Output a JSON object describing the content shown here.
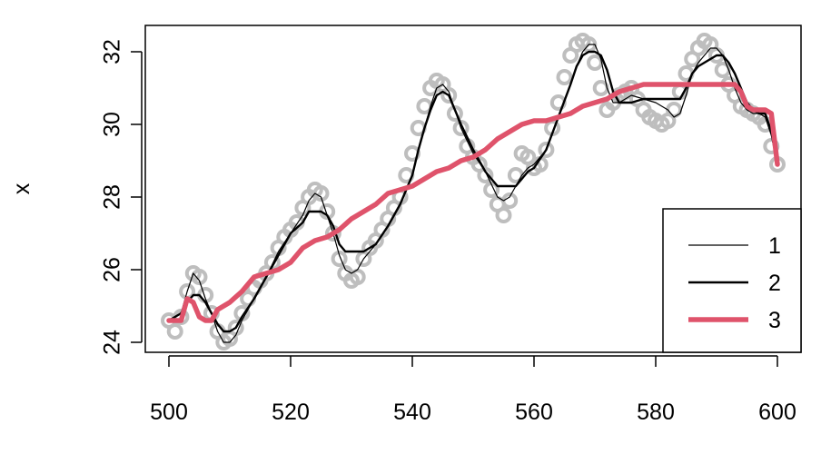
{
  "chart_data": {
    "type": "line",
    "title": "",
    "xlabel": "",
    "ylabel": "x",
    "xlim": [
      500,
      600
    ],
    "ylim": [
      24,
      32.5
    ],
    "x_ticks": [
      500,
      520,
      540,
      560,
      580,
      600
    ],
    "y_ticks": [
      24,
      26,
      28,
      30,
      32
    ],
    "x_tick_labels": [
      "500",
      "520",
      "540",
      "560",
      "580",
      "600"
    ],
    "y_tick_labels": [
      "24",
      "26",
      "28",
      "30",
      "32"
    ],
    "grid": false,
    "legend_position": "bottom-right",
    "points": {
      "color": "#bebebe",
      "x": [
        500,
        501,
        502,
        503,
        504,
        505,
        506,
        507,
        508,
        509,
        510,
        511,
        512,
        513,
        514,
        515,
        516,
        517,
        518,
        519,
        520,
        521,
        522,
        523,
        524,
        525,
        526,
        527,
        528,
        529,
        530,
        531,
        532,
        533,
        534,
        535,
        536,
        537,
        538,
        539,
        540,
        541,
        542,
        543,
        544,
        545,
        546,
        547,
        548,
        549,
        550,
        551,
        552,
        553,
        554,
        555,
        556,
        557,
        558,
        559,
        560,
        561,
        562,
        563,
        564,
        565,
        566,
        567,
        568,
        569,
        570,
        571,
        572,
        573,
        574,
        575,
        576,
        577,
        578,
        579,
        580,
        581,
        582,
        583,
        584,
        585,
        586,
        587,
        588,
        589,
        590,
        591,
        592,
        593,
        594,
        595,
        596,
        597,
        598,
        599,
        600
      ],
      "y": [
        24.6,
        24.3,
        24.7,
        25.4,
        25.9,
        25.8,
        25.3,
        24.8,
        24.3,
        24.0,
        24.1,
        24.4,
        24.8,
        25.2,
        25.5,
        25.7,
        25.9,
        26.2,
        26.6,
        26.9,
        27.1,
        27.3,
        27.7,
        28.0,
        28.2,
        28.1,
        27.6,
        27.0,
        26.3,
        25.9,
        25.7,
        25.8,
        26.3,
        26.6,
        26.8,
        27.1,
        27.4,
        27.7,
        28.0,
        28.6,
        29.2,
        29.9,
        30.5,
        31.0,
        31.2,
        31.1,
        30.8,
        30.3,
        29.9,
        29.4,
        29.1,
        28.9,
        28.6,
        28.2,
        27.8,
        27.5,
        27.9,
        28.6,
        29.2,
        29.1,
        28.8,
        28.9,
        29.3,
        29.9,
        30.6,
        31.3,
        31.9,
        32.2,
        32.3,
        32.2,
        31.7,
        31.0,
        30.4,
        30.6,
        30.8,
        30.9,
        31.0,
        30.7,
        30.4,
        30.2,
        30.1,
        30.0,
        30.1,
        30.4,
        30.9,
        31.4,
        31.8,
        32.1,
        32.3,
        32.2,
        31.9,
        31.5,
        31.1,
        30.8,
        30.5,
        30.4,
        30.3,
        30.2,
        30.0,
        29.4,
        28.9
      ]
    },
    "series": [
      {
        "name": "1",
        "color": "#000000",
        "stroke_width": 1.2,
        "x": [
          500,
          502,
          503,
          504,
          505,
          506,
          507,
          508,
          509,
          510,
          511,
          512,
          514,
          516,
          518,
          520,
          522,
          523,
          524,
          525,
          526,
          527,
          528,
          529,
          530,
          531,
          532,
          534,
          536,
          538,
          540,
          541,
          542,
          543,
          544,
          545,
          546,
          547,
          548,
          550,
          552,
          554,
          555,
          556,
          557,
          558,
          559,
          560,
          562,
          564,
          566,
          567,
          568,
          569,
          570,
          571,
          572,
          573,
          574,
          576,
          578,
          580,
          582,
          583,
          584,
          585,
          586,
          587,
          588,
          589,
          590,
          591,
          592,
          593,
          594,
          595,
          596,
          597,
          598,
          599,
          600
        ],
        "y": [
          24.6,
          24.8,
          25.4,
          25.9,
          25.7,
          25.2,
          24.8,
          24.3,
          24.0,
          24.0,
          24.2,
          24.6,
          25.2,
          25.8,
          26.5,
          27.0,
          27.5,
          27.9,
          28.1,
          28.0,
          27.5,
          27.0,
          26.4,
          26.0,
          25.9,
          26.0,
          26.3,
          26.7,
          27.2,
          27.8,
          28.6,
          29.3,
          29.9,
          30.5,
          31.0,
          31.1,
          30.9,
          30.4,
          29.9,
          29.2,
          28.7,
          28.0,
          27.9,
          28.0,
          28.3,
          28.6,
          28.8,
          28.9,
          29.3,
          30.2,
          31.1,
          31.6,
          32.0,
          32.2,
          32.2,
          31.8,
          31.0,
          30.6,
          30.6,
          30.8,
          30.7,
          30.6,
          30.4,
          30.2,
          30.3,
          30.8,
          31.4,
          31.7,
          31.9,
          32.1,
          32.1,
          31.9,
          31.5,
          31.0,
          30.6,
          30.4,
          30.3,
          30.3,
          30.2,
          29.7,
          28.9
        ]
      },
      {
        "name": "2",
        "color": "#000000",
        "stroke_width": 2.4,
        "x": [
          500,
          502,
          503,
          504,
          505,
          506,
          507,
          508,
          509,
          510,
          511,
          512,
          514,
          516,
          518,
          520,
          522,
          523,
          524,
          525,
          526,
          527,
          528,
          529,
          530,
          531,
          532,
          533,
          534,
          536,
          538,
          540,
          541,
          542,
          543,
          544,
          545,
          546,
          547,
          548,
          550,
          552,
          554,
          555,
          556,
          557,
          558,
          559,
          560,
          562,
          564,
          566,
          567,
          568,
          569,
          570,
          571,
          572,
          573,
          574,
          576,
          578,
          580,
          582,
          583,
          584,
          585,
          586,
          587,
          588,
          589,
          590,
          591,
          592,
          593,
          594,
          595,
          596,
          597,
          598,
          599,
          600
        ],
        "y": [
          24.6,
          24.8,
          25.1,
          25.3,
          25.3,
          25.1,
          24.8,
          24.5,
          24.3,
          24.3,
          24.4,
          24.7,
          25.2,
          25.8,
          26.4,
          27.0,
          27.3,
          27.6,
          27.6,
          27.6,
          27.5,
          27.2,
          26.7,
          26.5,
          26.5,
          26.5,
          26.5,
          26.6,
          26.7,
          27.2,
          27.8,
          28.6,
          29.3,
          29.9,
          30.4,
          30.8,
          30.9,
          30.8,
          30.4,
          30.0,
          29.3,
          28.7,
          28.3,
          28.3,
          28.3,
          28.3,
          28.5,
          28.7,
          28.8,
          29.3,
          30.2,
          31.1,
          31.6,
          31.9,
          32.0,
          32.0,
          31.9,
          31.5,
          30.9,
          30.6,
          30.6,
          30.7,
          30.7,
          30.7,
          30.7,
          30.7,
          31.0,
          31.4,
          31.6,
          31.7,
          31.8,
          31.9,
          31.9,
          31.7,
          31.4,
          31.0,
          30.6,
          30.4,
          30.3,
          30.3,
          29.8,
          28.9
        ]
      },
      {
        "name": "3",
        "color": "#df536b",
        "stroke_width": 5.5,
        "x": [
          500,
          502,
          503,
          504,
          505,
          506,
          507,
          508,
          510,
          512,
          514,
          516,
          518,
          520,
          522,
          524,
          526,
          528,
          530,
          532,
          534,
          536,
          538,
          540,
          542,
          544,
          546,
          548,
          550,
          552,
          554,
          556,
          558,
          560,
          562,
          564,
          566,
          568,
          570,
          572,
          574,
          576,
          578,
          580,
          582,
          584,
          586,
          588,
          590,
          592,
          593,
          594,
          595,
          596,
          597,
          598,
          599,
          600
        ],
        "y": [
          24.6,
          24.6,
          25.2,
          25.1,
          24.7,
          24.6,
          24.6,
          24.9,
          25.1,
          25.4,
          25.8,
          25.9,
          26.0,
          26.2,
          26.6,
          26.8,
          26.9,
          27.1,
          27.4,
          27.6,
          27.8,
          28.1,
          28.2,
          28.3,
          28.5,
          28.7,
          28.8,
          29.0,
          29.1,
          29.3,
          29.6,
          29.8,
          30.0,
          30.1,
          30.1,
          30.2,
          30.3,
          30.5,
          30.6,
          30.7,
          30.9,
          31.0,
          31.1,
          31.1,
          31.1,
          31.1,
          31.1,
          31.1,
          31.1,
          31.1,
          31.1,
          30.9,
          30.5,
          30.4,
          30.4,
          30.4,
          30.3,
          28.9
        ]
      }
    ]
  }
}
